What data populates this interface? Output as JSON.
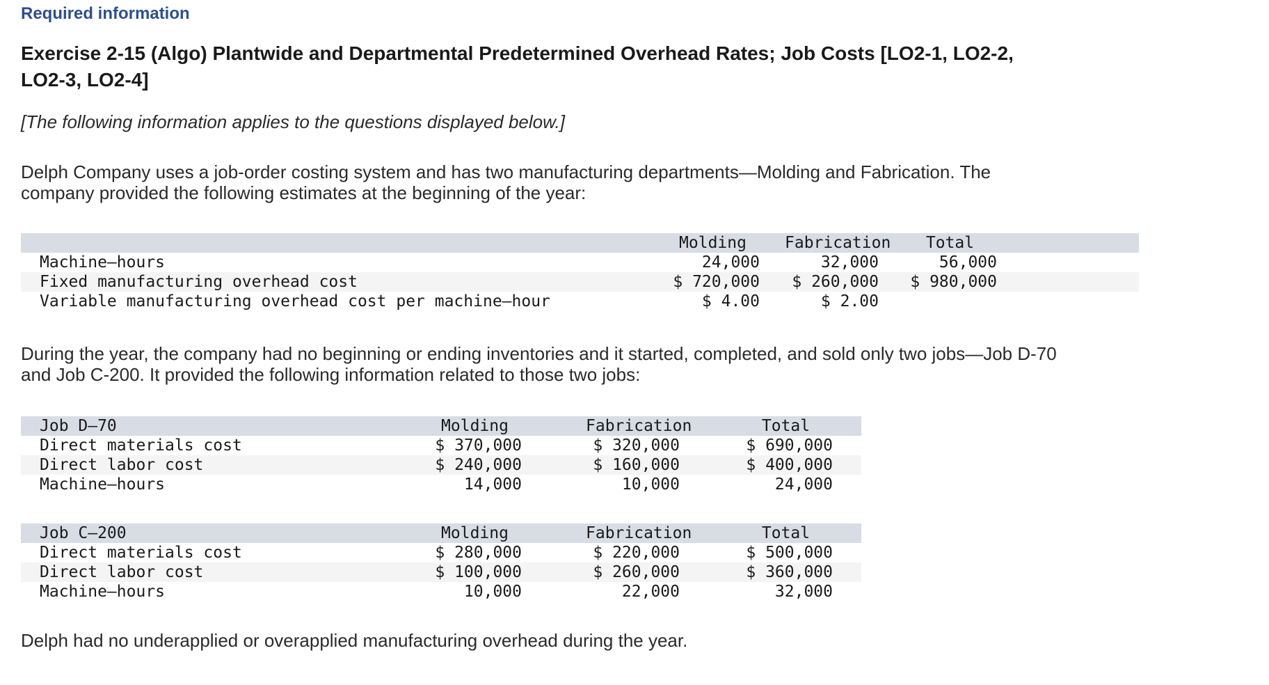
{
  "page": {
    "required_label": "Required information",
    "title": "Exercise 2-15 (Algo) Plantwide and Departmental Predetermined Overhead Rates; Job Costs [LO2-1, LO2-2, LO2-3, LO2-4]",
    "note": "[The following information applies to the questions displayed below.]",
    "intro_paragraph": "Delph Company uses a job-order costing system and has two manufacturing departments—Molding and Fabrication. The company provided the following estimates at the beginning of the year:",
    "jobs_paragraph": "During the year, the company had no beginning or ending inventories and it started, completed, and sold only two jobs—Job D-70 and Job C-200. It provided the following information related to those two jobs:",
    "closing_paragraph": "Delph had no underapplied or overapplied manufacturing overhead during the year."
  },
  "colors": {
    "heading_blue": "#2e4f8c",
    "table_header_bg": "#d8dce5",
    "row_stripe_bg": "#f4f4f4"
  },
  "estimates_table": {
    "label_header": "",
    "columns": [
      "Molding",
      "Fabrication",
      "Total"
    ],
    "rows": [
      {
        "label": "Machine–hours",
        "molding": "24,000",
        "fabrication": "32,000",
        "total": "56,000"
      },
      {
        "label": "Fixed manufacturing overhead cost",
        "molding": "$ 720,000",
        "fabrication": "$ 260,000",
        "total": "$ 980,000"
      },
      {
        "label": "Variable manufacturing overhead cost per machine–hour",
        "molding": "$ 4.00",
        "fabrication": "$ 2.00",
        "total": ""
      }
    ]
  },
  "job_d70_table": {
    "label_header": "Job D–70",
    "columns": [
      "Molding",
      "Fabrication",
      "Total"
    ],
    "rows": [
      {
        "label": "Direct materials cost",
        "molding": "$ 370,000",
        "fabrication": "$ 320,000",
        "total": "$ 690,000"
      },
      {
        "label": "Direct labor cost",
        "molding": "$ 240,000",
        "fabrication": "$ 160,000",
        "total": "$ 400,000"
      },
      {
        "label": "Machine–hours",
        "molding": "14,000",
        "fabrication": "10,000",
        "total": "24,000"
      }
    ]
  },
  "job_c200_table": {
    "label_header": "Job C–200",
    "columns": [
      "Molding",
      "Fabrication",
      "Total"
    ],
    "rows": [
      {
        "label": "Direct materials cost",
        "molding": "$ 280,000",
        "fabrication": "$ 220,000",
        "total": "$ 500,000"
      },
      {
        "label": "Direct labor cost",
        "molding": "$ 100,000",
        "fabrication": "$ 260,000",
        "total": "$ 360,000"
      },
      {
        "label": "Machine–hours",
        "molding": "10,000",
        "fabrication": "22,000",
        "total": "32,000"
      }
    ]
  }
}
